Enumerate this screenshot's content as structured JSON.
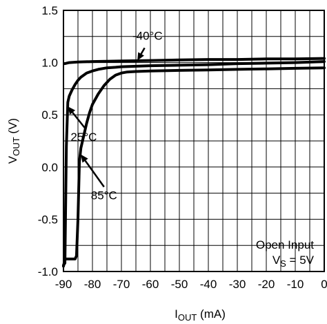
{
  "chart_data": {
    "type": "line",
    "title": "",
    "xlabel": {
      "main": "I",
      "sub": "OUT",
      "unit": " (mA)"
    },
    "ylabel": {
      "main": "V",
      "sub": "OUT",
      "unit": " (V)"
    },
    "xlim": [
      -90,
      0
    ],
    "ylim": [
      -1.0,
      1.5
    ],
    "xticks": [
      -90,
      -80,
      -70,
      -60,
      -50,
      -40,
      -30,
      -20,
      -10,
      0
    ],
    "xtick_labels": [
      "-90",
      "-80",
      "-70",
      "-60",
      "-50",
      "-40",
      "-30",
      "-20",
      "-10",
      "0"
    ],
    "yticks": [
      1.5,
      1.0,
      0.5,
      0.0,
      -0.5,
      -1.0
    ],
    "ytick_labels": [
      "1.5",
      "1.0",
      "0.5",
      "0.0",
      "-0.5",
      "-1.0"
    ],
    "x_grid_step": 5,
    "y_grid_step": 0.25,
    "grid": true,
    "series": [
      {
        "name": "-40°C",
        "x": [
          -89.5,
          -88,
          -85,
          -80,
          -70,
          -60,
          -50,
          -40,
          -30,
          -20,
          -10,
          0
        ],
        "y": [
          0.99,
          1.0,
          1.005,
          1.01,
          1.015,
          1.02,
          1.025,
          1.03,
          1.03,
          1.035,
          1.035,
          1.04
        ]
      },
      {
        "name": "25°C",
        "x": [
          -90,
          -89.5,
          -89,
          -88.5,
          -88,
          -87,
          -86,
          -85,
          -84,
          -82,
          -80,
          -78,
          -75,
          -72,
          -70,
          -65,
          -60,
          -50,
          -40,
          -30,
          -20,
          -10,
          0
        ],
        "y": [
          -0.94,
          -0.92,
          0.2,
          0.62,
          0.68,
          0.74,
          0.79,
          0.83,
          0.86,
          0.9,
          0.92,
          0.935,
          0.95,
          0.955,
          0.96,
          0.965,
          0.97,
          0.975,
          0.98,
          0.99,
          0.995,
          1.0,
          1.01
        ]
      },
      {
        "name": "85°C",
        "x": [
          -90,
          -89.5,
          -88,
          -86,
          -85.5,
          -85,
          -84.5,
          -84,
          -83,
          -82,
          -81,
          -80,
          -78,
          -76,
          -74,
          -72,
          -70,
          -68,
          -65,
          -60,
          -50,
          -40,
          -30,
          -20,
          -10,
          0
        ],
        "y": [
          -0.95,
          -0.88,
          -0.88,
          -0.88,
          -0.85,
          -0.5,
          0.05,
          0.18,
          0.3,
          0.42,
          0.52,
          0.6,
          0.7,
          0.78,
          0.84,
          0.88,
          0.9,
          0.91,
          0.915,
          0.92,
          0.925,
          0.93,
          0.935,
          0.94,
          0.945,
          0.95
        ]
      }
    ],
    "annotations": [
      {
        "text": "-40°C",
        "x": -61,
        "y": 1.26,
        "arrow_from": [
          -62,
          1.14
        ],
        "arrow_to": [
          -64.5,
          1.02
        ]
      },
      {
        "text": "25°C",
        "x": -83,
        "y": 0.29,
        "arrow_from": [
          -82.5,
          0.37
        ],
        "arrow_to": [
          -88.5,
          0.58
        ]
      },
      {
        "text": "85°C",
        "x": -76,
        "y": -0.27,
        "arrow_from": [
          -76,
          -0.19
        ],
        "arrow_to": [
          -84,
          0.12
        ]
      }
    ],
    "legend_note": {
      "line1": "Open Input",
      "line2_main": "V",
      "line2_sub": "S",
      "line2_rest": " = 5V"
    }
  }
}
